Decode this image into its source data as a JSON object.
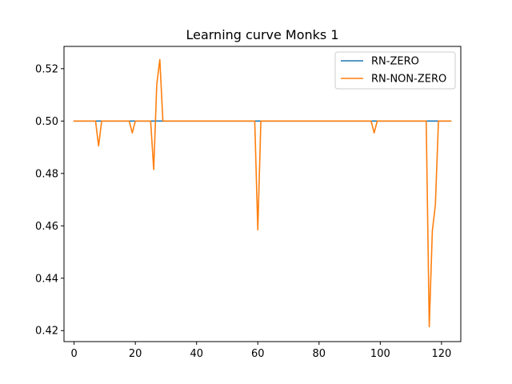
{
  "chart_data": {
    "type": "line",
    "title": "Learning curve Monks 1",
    "xlabel": "",
    "ylabel": "",
    "xlim": [
      -3.3,
      126.3
    ],
    "ylim": [
      0.4158,
      0.5285
    ],
    "xticks": [
      0,
      20,
      40,
      60,
      80,
      100,
      120
    ],
    "yticks": [
      0.42,
      0.44,
      0.46,
      0.48,
      0.5,
      0.52
    ],
    "ytick_labels": [
      "0.42",
      "0.44",
      "0.46",
      "0.48",
      "0.50",
      "0.52"
    ],
    "grid": false,
    "legend_position": "upper right",
    "series": [
      {
        "name": "RN-ZERO",
        "color": "#1f77b4",
        "points": [
          [
            0,
            0.5
          ],
          [
            123,
            0.5
          ]
        ]
      },
      {
        "name": "RN-NON-ZERO",
        "color": "#ff7f0e",
        "points": [
          [
            0,
            0.5
          ],
          [
            7,
            0.5
          ],
          [
            8,
            0.4905
          ],
          [
            9,
            0.5
          ],
          [
            18,
            0.5
          ],
          [
            19,
            0.4955
          ],
          [
            20,
            0.5
          ],
          [
            25,
            0.5
          ],
          [
            26,
            0.4815
          ],
          [
            27,
            0.514
          ],
          [
            28,
            0.5235
          ],
          [
            29,
            0.5
          ],
          [
            59,
            0.5
          ],
          [
            60,
            0.4585
          ],
          [
            61,
            0.5
          ],
          [
            97,
            0.5
          ],
          [
            98,
            0.4955
          ],
          [
            99,
            0.5
          ],
          [
            115,
            0.5
          ],
          [
            116,
            0.4215
          ],
          [
            117,
            0.458
          ],
          [
            118,
            0.468
          ],
          [
            119,
            0.5
          ],
          [
            123,
            0.5
          ]
        ]
      }
    ]
  }
}
